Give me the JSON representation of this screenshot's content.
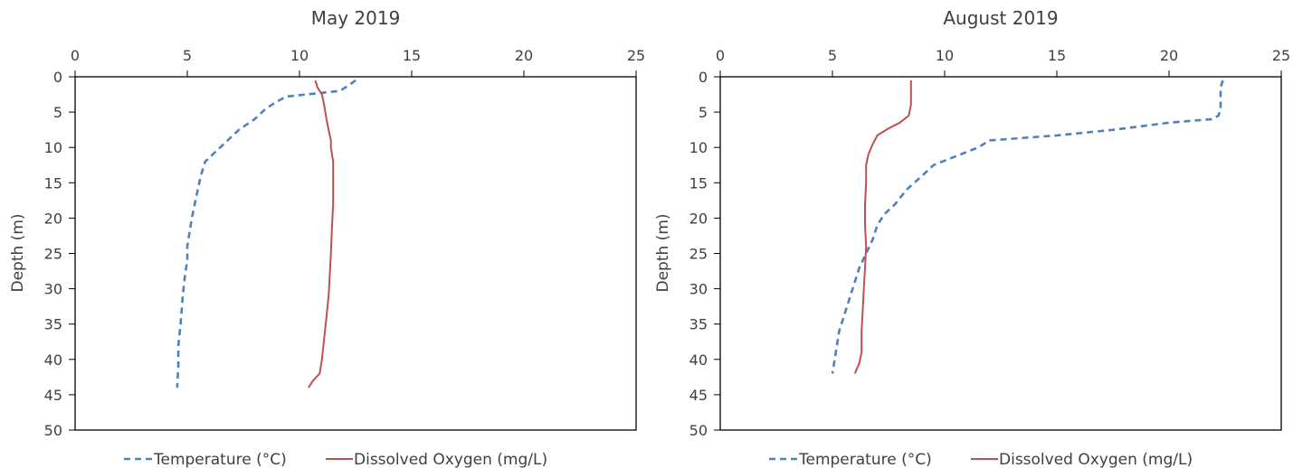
{
  "colors": {
    "temperature": "#4f81bd",
    "dissolved_oxygen": "#c0504d",
    "axis": "#000000",
    "text": "#404040"
  },
  "chart_data": [
    {
      "type": "line",
      "title": "May 2019",
      "xlabel": "",
      "ylabel": "Depth (m)",
      "xlim": [
        0,
        25
      ],
      "ylim": [
        0,
        50
      ],
      "y_inverted": true,
      "x_axis_position": "top",
      "x_ticks": [
        "0",
        "5",
        "10",
        "15",
        "20",
        "25"
      ],
      "y_ticks": [
        "0",
        "5",
        "10",
        "15",
        "20",
        "25",
        "30",
        "35",
        "40",
        "45",
        "50"
      ],
      "grid": false,
      "legend": "bottom",
      "series": [
        {
          "name": "Temperature (°C)",
          "style": "dashed",
          "points": [
            [
              12.5,
              0.5
            ],
            [
              12.2,
              1.2
            ],
            [
              11.8,
              2
            ],
            [
              10.6,
              2.4
            ],
            [
              9.4,
              2.8
            ],
            [
              9.0,
              3.5
            ],
            [
              8.5,
              4.5
            ],
            [
              8.0,
              6.0
            ],
            [
              7.3,
              7.5
            ],
            [
              6.8,
              9
            ],
            [
              6.3,
              10.5
            ],
            [
              5.8,
              12
            ],
            [
              5.6,
              14
            ],
            [
              5.4,
              17
            ],
            [
              5.2,
              20
            ],
            [
              5.1,
              22
            ],
            [
              5.0,
              24
            ],
            [
              5.0,
              26
            ],
            [
              4.9,
              28
            ],
            [
              4.8,
              31
            ],
            [
              4.7,
              35
            ],
            [
              4.6,
              38
            ],
            [
              4.6,
              41
            ],
            [
              4.55,
              44
            ]
          ]
        },
        {
          "name": "Dissolved Oxygen (mg/L)",
          "style": "solid",
          "points": [
            [
              10.7,
              0.5
            ],
            [
              10.8,
              1.5
            ],
            [
              11.0,
              2.5
            ],
            [
              11.1,
              4
            ],
            [
              11.2,
              6
            ],
            [
              11.3,
              7.5
            ],
            [
              11.4,
              9
            ],
            [
              11.4,
              10
            ],
            [
              11.5,
              12
            ],
            [
              11.5,
              15
            ],
            [
              11.5,
              18
            ],
            [
              11.45,
              21
            ],
            [
              11.4,
              25
            ],
            [
              11.35,
              28
            ],
            [
              11.3,
              31
            ],
            [
              11.2,
              34
            ],
            [
              11.1,
              37
            ],
            [
              11.0,
              40
            ],
            [
              10.9,
              42
            ],
            [
              10.6,
              43
            ],
            [
              10.4,
              44
            ]
          ]
        }
      ]
    },
    {
      "type": "line",
      "title": "August 2019",
      "xlabel": "",
      "ylabel": "Depth (m)",
      "xlim": [
        0,
        25
      ],
      "ylim": [
        0,
        50
      ],
      "y_inverted": true,
      "x_axis_position": "top",
      "x_ticks": [
        "0",
        "5",
        "10",
        "15",
        "20",
        "25"
      ],
      "y_ticks": [
        "0",
        "5",
        "10",
        "15",
        "20",
        "25",
        "30",
        "35",
        "40",
        "45",
        "50"
      ],
      "grid": false,
      "legend": "bottom",
      "series": [
        {
          "name": "Temperature (°C)",
          "style": "dashed",
          "points": [
            [
              22.4,
              0.5
            ],
            [
              22.3,
              1.5
            ],
            [
              22.3,
              3
            ],
            [
              22.3,
              4.5
            ],
            [
              22.2,
              5.5
            ],
            [
              21.9,
              6.0
            ],
            [
              20.0,
              6.5
            ],
            [
              17.5,
              7.5
            ],
            [
              15.0,
              8.3
            ],
            [
              12.0,
              9
            ],
            [
              11.5,
              10
            ],
            [
              10.3,
              11.5
            ],
            [
              9.5,
              12.5
            ],
            [
              9.0,
              14
            ],
            [
              8.3,
              16
            ],
            [
              7.8,
              18
            ],
            [
              7.3,
              19.5
            ],
            [
              7.0,
              21
            ],
            [
              6.8,
              23
            ],
            [
              6.5,
              25
            ],
            [
              6.2,
              27
            ],
            [
              5.9,
              30
            ],
            [
              5.6,
              33
            ],
            [
              5.3,
              36
            ],
            [
              5.1,
              40
            ],
            [
              5.0,
              42
            ]
          ]
        },
        {
          "name": "Dissolved Oxygen (mg/L)",
          "style": "solid",
          "points": [
            [
              8.5,
              0.5
            ],
            [
              8.5,
              2
            ],
            [
              8.5,
              4
            ],
            [
              8.4,
              5.5
            ],
            [
              8.0,
              6.5
            ],
            [
              7.5,
              7.3
            ],
            [
              7.0,
              8.3
            ],
            [
              6.8,
              9.5
            ],
            [
              6.6,
              11
            ],
            [
              6.5,
              12.5
            ],
            [
              6.5,
              15
            ],
            [
              6.45,
              18
            ],
            [
              6.45,
              21
            ],
            [
              6.5,
              24
            ],
            [
              6.45,
              27
            ],
            [
              6.4,
              30
            ],
            [
              6.35,
              33
            ],
            [
              6.3,
              36
            ],
            [
              6.3,
              39
            ],
            [
              6.2,
              40.5
            ],
            [
              6.0,
              42
            ]
          ]
        }
      ]
    }
  ]
}
